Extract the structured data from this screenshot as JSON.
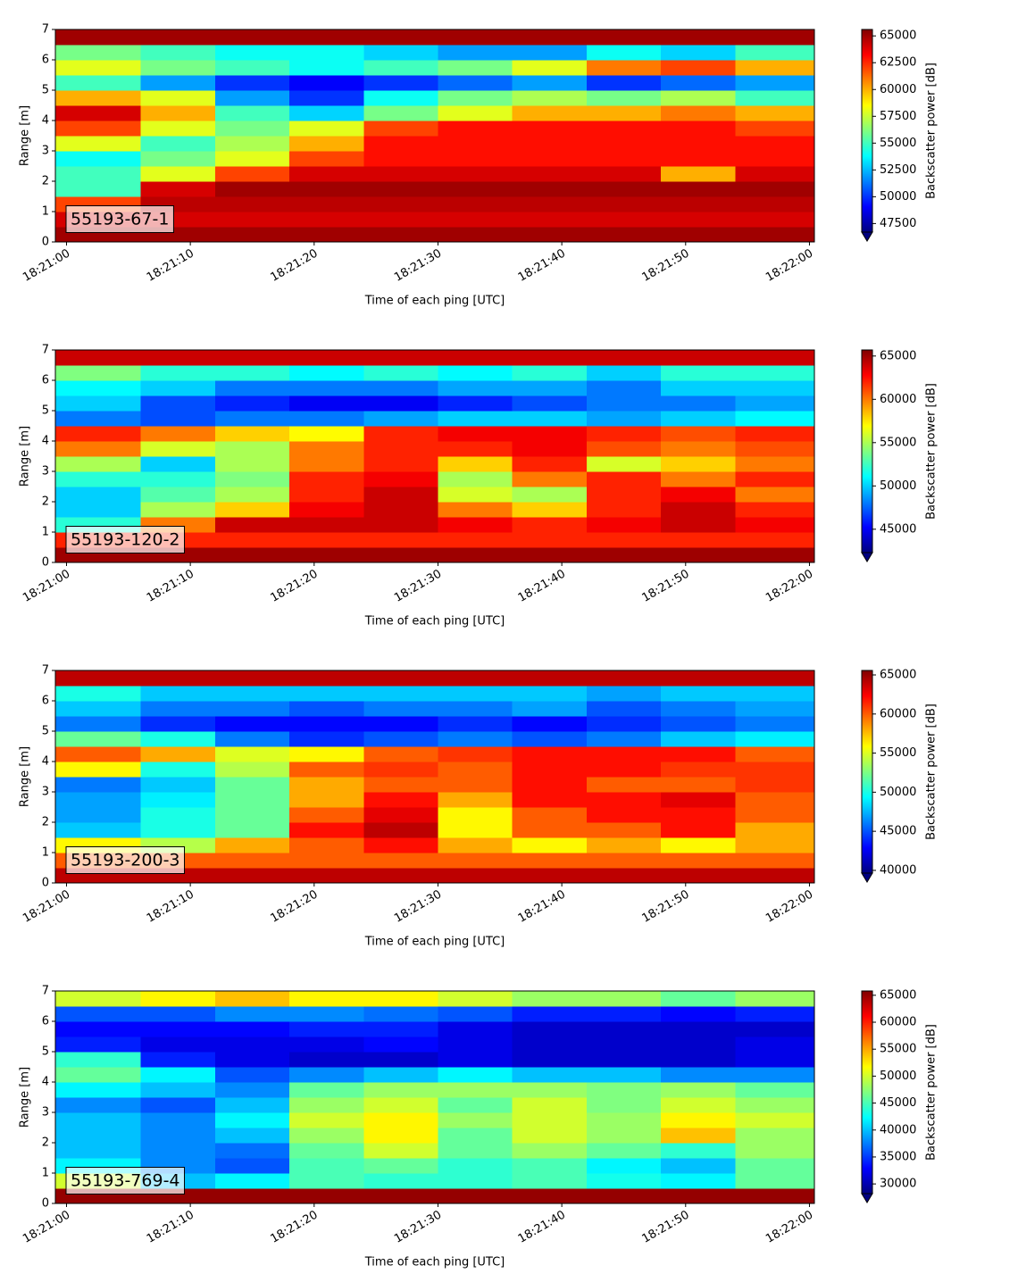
{
  "chart_data": [
    {
      "type": "heatmap",
      "annotation": "55193-67-1",
      "xlabel": "Time of each ping [UTC]",
      "ylabel": "Range [m]",
      "colorbar_label": "Backscatter power [dB]",
      "colormap": "jet",
      "colorbar_extend": "min",
      "clim": [
        46700,
        65600
      ],
      "colorbar_ticks": [
        47500,
        50000,
        52500,
        55000,
        57500,
        60000,
        62500,
        65000
      ],
      "xlim": [
        "18:20:59.1",
        "18:22:00.4"
      ],
      "xticks": [
        "18:21:00",
        "18:21:10",
        "18:21:20",
        "18:21:30",
        "18:21:40",
        "18:21:50",
        "18:22:00"
      ],
      "ylim": [
        0,
        7
      ],
      "yticks": [
        0,
        1,
        2,
        3,
        4,
        5,
        6,
        7
      ],
      "x": [
        "18:21:03",
        "18:21:09",
        "18:21:15",
        "18:21:21",
        "18:21:27",
        "18:21:33",
        "18:21:39",
        "18:21:45",
        "18:21:51",
        "18:21:57"
      ],
      "y": [
        0.25,
        0.75,
        1.25,
        1.75,
        2.25,
        2.75,
        3.25,
        3.75,
        4.25,
        4.75,
        5.25,
        5.75,
        6.25,
        6.75
      ],
      "values": [
        [
          65000,
          65000,
          65000,
          65000,
          65000,
          65000,
          65000,
          65000,
          65000,
          65000
        ],
        [
          64000,
          64000,
          64000,
          64000,
          64000,
          64000,
          64000,
          64000,
          64000,
          64000
        ],
        [
          62000,
          64500,
          64500,
          64500,
          64500,
          64500,
          64500,
          64500,
          64500,
          64500
        ],
        [
          55000,
          64000,
          65000,
          65000,
          65000,
          65000,
          65000,
          65000,
          65000,
          65000
        ],
        [
          55000,
          58000,
          62000,
          64000,
          64000,
          64000,
          64000,
          64000,
          60000,
          64000
        ],
        [
          54000,
          56000,
          58000,
          62000,
          63000,
          63000,
          63000,
          63000,
          63000,
          63000
        ],
        [
          58000,
          55000,
          57000,
          60000,
          63000,
          63000,
          63000,
          63000,
          63000,
          63000
        ],
        [
          62000,
          58000,
          56000,
          58000,
          62000,
          63000,
          63000,
          63000,
          63000,
          62000
        ],
        [
          64000,
          60000,
          55000,
          53000,
          56000,
          58000,
          60000,
          60000,
          61000,
          60000
        ],
        [
          60000,
          58000,
          52000,
          50000,
          54000,
          56000,
          57000,
          56000,
          57000,
          55000
        ],
        [
          55000,
          52000,
          50000,
          49000,
          50000,
          51000,
          52000,
          50000,
          51000,
          52000
        ],
        [
          58000,
          56000,
          55000,
          54000,
          55000,
          56000,
          58000,
          61000,
          62000,
          60000
        ],
        [
          56000,
          55000,
          54000,
          54000,
          53000,
          52000,
          52000,
          54000,
          53000,
          55000
        ],
        [
          65000,
          65000,
          65000,
          65000,
          65000,
          65000,
          65000,
          65000,
          65000,
          65000
        ]
      ]
    },
    {
      "type": "heatmap",
      "annotation": "55193-120-2",
      "xlabel": "Time of each ping [UTC]",
      "ylabel": "Range [m]",
      "colorbar_label": "Backscatter power [dB]",
      "colormap": "jet",
      "colorbar_extend": "min",
      "clim": [
        42300,
        65700
      ],
      "colorbar_ticks": [
        45000,
        50000,
        55000,
        60000,
        65000
      ],
      "xlim": [
        "18:20:59.1",
        "18:22:00.4"
      ],
      "xticks": [
        "18:21:00",
        "18:21:10",
        "18:21:20",
        "18:21:30",
        "18:21:40",
        "18:21:50",
        "18:22:00"
      ],
      "ylim": [
        0,
        7
      ],
      "yticks": [
        0,
        1,
        2,
        3,
        4,
        5,
        6,
        7
      ],
      "x": [
        "18:21:03",
        "18:21:09",
        "18:21:15",
        "18:21:21",
        "18:21:27",
        "18:21:33",
        "18:21:39",
        "18:21:45",
        "18:21:51",
        "18:21:57"
      ],
      "y": [
        0.25,
        0.75,
        1.25,
        1.75,
        2.25,
        2.75,
        3.25,
        3.75,
        4.25,
        4.75,
        5.25,
        5.75,
        6.25,
        6.75
      ],
      "values": [
        [
          65000,
          65000,
          65000,
          65000,
          65000,
          65000,
          65000,
          65000,
          65000,
          65000
        ],
        [
          62000,
          62000,
          62000,
          62000,
          62000,
          62000,
          62000,
          62000,
          62000,
          62000
        ],
        [
          52000,
          60000,
          64000,
          64000,
          64000,
          63000,
          62000,
          63000,
          64000,
          63000
        ],
        [
          50000,
          55000,
          58000,
          63000,
          64000,
          60000,
          58000,
          62000,
          64000,
          62000
        ],
        [
          50000,
          53000,
          55000,
          62000,
          64000,
          56000,
          55000,
          62000,
          63000,
          60000
        ],
        [
          52000,
          52000,
          54000,
          62000,
          63000,
          55000,
          60000,
          62000,
          60000,
          62000
        ],
        [
          55000,
          50000,
          55000,
          60000,
          62000,
          58000,
          62000,
          56000,
          58000,
          60000
        ],
        [
          60000,
          56000,
          55000,
          60000,
          62000,
          62000,
          63000,
          61000,
          60000,
          61000
        ],
        [
          62000,
          60000,
          58000,
          57000,
          62000,
          63000,
          63000,
          62000,
          61000,
          62000
        ],
        [
          48000,
          47000,
          48000,
          48000,
          49000,
          50000,
          50000,
          49000,
          50000,
          51000
        ],
        [
          50000,
          47000,
          46000,
          45000,
          45000,
          46000,
          47000,
          48000,
          48000,
          49000
        ],
        [
          51000,
          50000,
          48000,
          48000,
          48000,
          49000,
          49000,
          48000,
          50000,
          50000
        ],
        [
          54000,
          52000,
          52000,
          51000,
          52000,
          51000,
          52000,
          50000,
          52000,
          52000
        ],
        [
          64000,
          64000,
          64000,
          64000,
          64000,
          64000,
          64000,
          64000,
          64000,
          64000
        ]
      ]
    },
    {
      "type": "heatmap",
      "annotation": "55193-200-3",
      "xlabel": "Time of each ping [UTC]",
      "ylabel": "Range [m]",
      "colorbar_label": "Backscatter power [dB]",
      "colormap": "jet",
      "colorbar_extend": "min",
      "clim": [
        39650,
        65570
      ],
      "colorbar_ticks": [
        40000,
        45000,
        50000,
        55000,
        60000,
        65000
      ],
      "xlim": [
        "18:20:59.1",
        "18:22:00.4"
      ],
      "xticks": [
        "18:21:00",
        "18:21:10",
        "18:21:20",
        "18:21:30",
        "18:21:40",
        "18:21:50",
        "18:22:00"
      ],
      "ylim": [
        0,
        7
      ],
      "yticks": [
        0,
        1,
        2,
        3,
        4,
        5,
        6,
        7
      ],
      "x": [
        "18:21:03",
        "18:21:09",
        "18:21:15",
        "18:21:21",
        "18:21:27",
        "18:21:33",
        "18:21:39",
        "18:21:45",
        "18:21:51",
        "18:21:57"
      ],
      "y": [
        0.25,
        0.75,
        1.25,
        1.75,
        2.25,
        2.75,
        3.25,
        3.75,
        4.25,
        4.75,
        5.25,
        5.75,
        6.25,
        6.75
      ],
      "values": [
        [
          64000,
          64000,
          64000,
          64000,
          64000,
          64000,
          64000,
          64000,
          64000,
          64000
        ],
        [
          60000,
          60000,
          60000,
          60000,
          60000,
          60000,
          60000,
          60000,
          60000,
          60000
        ],
        [
          56000,
          54000,
          58000,
          60000,
          62000,
          58000,
          56000,
          58000,
          56000,
          58000
        ],
        [
          48000,
          50000,
          52000,
          62000,
          64000,
          56000,
          60000,
          60000,
          62000,
          58000
        ],
        [
          47000,
          50000,
          52000,
          60000,
          63000,
          56000,
          60000,
          62000,
          62000,
          60000
        ],
        [
          47000,
          49000,
          52000,
          58000,
          62000,
          58000,
          62000,
          62000,
          63000,
          60000
        ],
        [
          46000,
          48000,
          52000,
          58000,
          60000,
          60000,
          62000,
          60000,
          60000,
          61000
        ],
        [
          56000,
          50000,
          54000,
          60000,
          61000,
          60000,
          62000,
          62000,
          61000,
          61000
        ],
        [
          60000,
          58000,
          55000,
          56000,
          60000,
          61000,
          62000,
          62000,
          62000,
          60000
        ],
        [
          52000,
          50000,
          46000,
          44000,
          45000,
          46000,
          45000,
          46000,
          48000,
          49000
        ],
        [
          46000,
          44000,
          43000,
          43000,
          43000,
          44000,
          43000,
          44000,
          45000,
          46000
        ],
        [
          48000,
          46000,
          46000,
          45000,
          46000,
          46000,
          47000,
          45000,
          46000,
          47000
        ],
        [
          50000,
          48000,
          48000,
          48000,
          48000,
          48000,
          48000,
          47000,
          48000,
          48000
        ],
        [
          64000,
          64000,
          64000,
          64000,
          64000,
          64000,
          64000,
          64000,
          64000,
          64000
        ]
      ]
    },
    {
      "type": "heatmap",
      "annotation": "55193-769-4",
      "xlabel": "Time of each ping [UTC]",
      "ylabel": "Range [m]",
      "colorbar_label": "Backscatter power [dB]",
      "colormap": "jet",
      "colorbar_extend": "min",
      "clim": [
        28200,
        65800
      ],
      "colorbar_ticks": [
        30000,
        35000,
        40000,
        45000,
        50000,
        55000,
        60000,
        65000
      ],
      "xlim": [
        "18:20:59.1",
        "18:22:00.4"
      ],
      "xticks": [
        "18:21:00",
        "18:21:10",
        "18:21:20",
        "18:21:30",
        "18:21:40",
        "18:21:50",
        "18:22:00"
      ],
      "ylim": [
        0,
        7
      ],
      "yticks": [
        0,
        1,
        2,
        3,
        4,
        5,
        6,
        7
      ],
      "x": [
        "18:21:03",
        "18:21:09",
        "18:21:15",
        "18:21:21",
        "18:21:27",
        "18:21:33",
        "18:21:39",
        "18:21:45",
        "18:21:51",
        "18:21:57"
      ],
      "y": [
        0.25,
        0.75,
        1.25,
        1.75,
        2.25,
        2.75,
        3.25,
        3.75,
        4.25,
        4.75,
        5.25,
        5.75,
        6.25,
        6.75
      ],
      "values": [
        [
          65000,
          65000,
          65000,
          65000,
          65000,
          65000,
          65000,
          65000,
          65000,
          65000
        ],
        [
          50000,
          40000,
          42000,
          45000,
          44000,
          44000,
          45000,
          43000,
          42000,
          46000
        ],
        [
          42000,
          38000,
          36000,
          45000,
          46000,
          44000,
          45000,
          42000,
          40000,
          46000
        ],
        [
          40000,
          38000,
          37000,
          46000,
          50000,
          46000,
          48000,
          46000,
          44000,
          48000
        ],
        [
          40000,
          38000,
          40000,
          48000,
          52000,
          46000,
          50000,
          48000,
          54000,
          48000
        ],
        [
          40000,
          38000,
          42000,
          50000,
          52000,
          48000,
          50000,
          48000,
          52000,
          50000
        ],
        [
          38000,
          36000,
          40000,
          48000,
          50000,
          46000,
          50000,
          47000,
          50000,
          48000
        ],
        [
          42000,
          40000,
          38000,
          46000,
          48000,
          48000,
          48000,
          47000,
          48000,
          46000
        ],
        [
          46000,
          42000,
          36000,
          38000,
          40000,
          42000,
          40000,
          40000,
          38000,
          38000
        ],
        [
          44000,
          34000,
          32000,
          31000,
          31000,
          32000,
          31000,
          31000,
          31000,
          32000
        ],
        [
          34000,
          32000,
          32000,
          32000,
          33000,
          32000,
          31000,
          31000,
          31000,
          32000
        ],
        [
          33000,
          33000,
          33000,
          34000,
          34000,
          32000,
          31000,
          31000,
          31000,
          31000
        ],
        [
          36000,
          36000,
          38000,
          38000,
          37000,
          36000,
          34000,
          34000,
          33000,
          34000
        ],
        [
          50000,
          52000,
          54000,
          52000,
          52000,
          50000,
          48000,
          48000,
          46000,
          48000
        ]
      ]
    }
  ]
}
